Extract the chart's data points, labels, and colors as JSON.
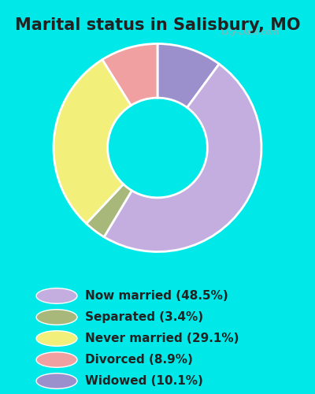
{
  "title": "Marital status in Salisbury, MO",
  "ordered_slices": [
    10.1,
    48.5,
    3.4,
    29.1,
    8.9
  ],
  "ordered_colors": [
    "#9b8fcc",
    "#c4aee0",
    "#a8b87a",
    "#f2f07a",
    "#f0a0a0"
  ],
  "legend_labels": [
    "Now married (48.5%)",
    "Separated (3.4%)",
    "Never married (29.1%)",
    "Divorced (8.9%)",
    "Widowed (10.1%)"
  ],
  "legend_colors": [
    "#c4aee0",
    "#a8b87a",
    "#f2f07a",
    "#f0a0a0",
    "#9b8fcc"
  ],
  "bg_outer": "#00e8e8",
  "bg_chart": "#d5ede0",
  "title_fontsize": 15,
  "legend_fontsize": 11,
  "watermark": "City-Data.com"
}
